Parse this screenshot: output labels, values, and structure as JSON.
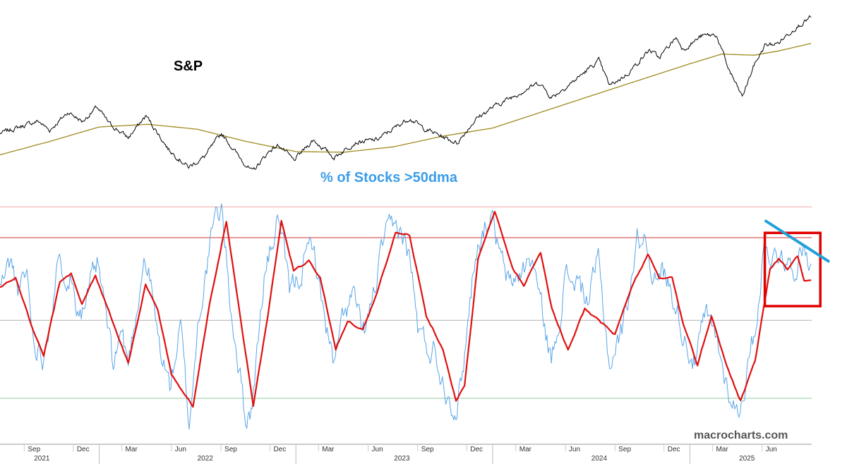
{
  "chart_data": [
    {
      "type": "line",
      "title": "S&P",
      "x_range": [
        "2021-07-01",
        "2025-08-15"
      ],
      "series": [
        {
          "role": "price",
          "color": "#000000",
          "points": [
            [
              "2021-07-01",
              4300
            ],
            [
              "2021-08-15",
              4450
            ],
            [
              "2021-09-10",
              4530
            ],
            [
              "2021-10-01",
              4360
            ],
            [
              "2021-11-05",
              4700
            ],
            [
              "2021-12-01",
              4520
            ],
            [
              "2021-12-28",
              4790
            ],
            [
              "2022-01-20",
              4480
            ],
            [
              "2022-02-24",
              4220
            ],
            [
              "2022-03-29",
              4630
            ],
            [
              "2022-05-10",
              4000
            ],
            [
              "2022-06-16",
              3670
            ],
            [
              "2022-07-15",
              3860
            ],
            [
              "2022-08-16",
              4300
            ],
            [
              "2022-09-15",
              3900
            ],
            [
              "2022-10-12",
              3580
            ],
            [
              "2022-11-15",
              4000
            ],
            [
              "2022-12-01",
              4080
            ],
            [
              "2022-12-28",
              3790
            ],
            [
              "2023-02-02",
              4180
            ],
            [
              "2023-03-13",
              3850
            ],
            [
              "2023-04-20",
              4130
            ],
            [
              "2023-05-31",
              4180
            ],
            [
              "2023-07-31",
              4590
            ],
            [
              "2023-08-25",
              4400
            ],
            [
              "2023-10-27",
              4120
            ],
            [
              "2023-11-30",
              4560
            ],
            [
              "2023-12-29",
              4770
            ],
            [
              "2024-02-15",
              5030
            ],
            [
              "2024-03-28",
              5250
            ],
            [
              "2024-04-19",
              4970
            ],
            [
              "2024-05-31",
              5280
            ],
            [
              "2024-07-16",
              5660
            ],
            [
              "2024-08-05",
              5190
            ],
            [
              "2024-09-06",
              5400
            ],
            [
              "2024-10-18",
              5860
            ],
            [
              "2024-11-05",
              5710
            ],
            [
              "2024-12-06",
              6090
            ],
            [
              "2024-12-20",
              5870
            ],
            [
              "2025-01-23",
              6120
            ],
            [
              "2025-02-19",
              6140
            ],
            [
              "2025-03-13",
              5520
            ],
            [
              "2025-04-08",
              4980
            ],
            [
              "2025-04-30",
              5570
            ],
            [
              "2025-05-20",
              5940
            ],
            [
              "2025-06-13",
              5980
            ],
            [
              "2025-07-15",
              6270
            ],
            [
              "2025-08-14",
              6470
            ]
          ]
        },
        {
          "role": "long moving average",
          "color": "#a08a1e",
          "points": [
            [
              "2021-07-01",
              3900
            ],
            [
              "2021-10-01",
              4150
            ],
            [
              "2022-01-01",
              4420
            ],
            [
              "2022-04-01",
              4470
            ],
            [
              "2022-07-01",
              4380
            ],
            [
              "2022-10-01",
              4150
            ],
            [
              "2023-01-01",
              3960
            ],
            [
              "2023-04-01",
              3950
            ],
            [
              "2023-07-01",
              4050
            ],
            [
              "2023-10-01",
              4250
            ],
            [
              "2024-01-01",
              4400
            ],
            [
              "2024-04-01",
              4700
            ],
            [
              "2024-07-01",
              5000
            ],
            [
              "2024-10-01",
              5300
            ],
            [
              "2025-01-01",
              5600
            ],
            [
              "2025-03-01",
              5780
            ],
            [
              "2025-05-01",
              5760
            ],
            [
              "2025-06-15",
              5840
            ],
            [
              "2025-08-14",
              5980
            ]
          ]
        }
      ]
    },
    {
      "type": "line",
      "title": "% of Stocks >50dma",
      "x_range": [
        "2021-07-01",
        "2025-08-15"
      ],
      "y_range": [
        0,
        100
      ],
      "series": [
        {
          "role": "daily",
          "color": "#5aa5e6",
          "points": [
            [
              "2021-07-01",
              62
            ],
            [
              "2021-07-20",
              73
            ],
            [
              "2021-08-05",
              60
            ],
            [
              "2021-08-20",
              68
            ],
            [
              "2021-09-01",
              40
            ],
            [
              "2021-09-20",
              33
            ],
            [
              "2021-10-15",
              70
            ],
            [
              "2021-11-08",
              68
            ],
            [
              "2021-11-20",
              57
            ],
            [
              "2021-12-01",
              53
            ],
            [
              "2021-12-10",
              58
            ],
            [
              "2021-12-28",
              71
            ],
            [
              "2022-01-10",
              56
            ],
            [
              "2022-01-27",
              28
            ],
            [
              "2022-02-10",
              44
            ],
            [
              "2022-02-24",
              30
            ],
            [
              "2022-03-25",
              74
            ],
            [
              "2022-04-05",
              66
            ],
            [
              "2022-04-20",
              40
            ],
            [
              "2022-05-12",
              20
            ],
            [
              "2022-06-01",
              45
            ],
            [
              "2022-06-17",
              4
            ],
            [
              "2022-07-05",
              50
            ],
            [
              "2022-08-01",
              88
            ],
            [
              "2022-08-16",
              96
            ],
            [
              "2022-09-01",
              56
            ],
            [
              "2022-09-30",
              6
            ],
            [
              "2022-10-12",
              12
            ],
            [
              "2022-11-03",
              66
            ],
            [
              "2022-11-30",
              92
            ],
            [
              "2022-12-20",
              59
            ],
            [
              "2023-01-05",
              66
            ],
            [
              "2023-02-02",
              82
            ],
            [
              "2023-02-15",
              60
            ],
            [
              "2023-03-13",
              28
            ],
            [
              "2023-03-30",
              50
            ],
            [
              "2023-04-20",
              59
            ],
            [
              "2023-05-04",
              40
            ],
            [
              "2023-05-18",
              51
            ],
            [
              "2023-06-15",
              84
            ],
            [
              "2023-07-14",
              87
            ],
            [
              "2023-08-01",
              74
            ],
            [
              "2023-08-15",
              45
            ],
            [
              "2023-09-01",
              36
            ],
            [
              "2023-09-15",
              36
            ],
            [
              "2023-10-04",
              20
            ],
            [
              "2023-10-27",
              10
            ],
            [
              "2023-11-10",
              34
            ],
            [
              "2023-11-30",
              78
            ],
            [
              "2023-12-28",
              93
            ],
            [
              "2024-01-17",
              73
            ],
            [
              "2024-02-01",
              62
            ],
            [
              "2024-02-20",
              68
            ],
            [
              "2024-03-15",
              74
            ],
            [
              "2024-04-19",
              30
            ],
            [
              "2024-05-15",
              66
            ],
            [
              "2024-06-05",
              65
            ],
            [
              "2024-06-25",
              56
            ],
            [
              "2024-07-15",
              73
            ],
            [
              "2024-08-05",
              29
            ],
            [
              "2024-08-30",
              45
            ],
            [
              "2024-09-25",
              82
            ],
            [
              "2024-10-10",
              84
            ],
            [
              "2024-11-01",
              62
            ],
            [
              "2024-11-11",
              70
            ],
            [
              "2024-11-29",
              60
            ],
            [
              "2024-12-18",
              44
            ],
            [
              "2025-01-10",
              30
            ],
            [
              "2025-01-30",
              50
            ],
            [
              "2025-02-19",
              40
            ],
            [
              "2025-03-10",
              21
            ],
            [
              "2025-03-31",
              8
            ],
            [
              "2025-04-10",
              18
            ],
            [
              "2025-05-02",
              44
            ],
            [
              "2025-05-20",
              82
            ],
            [
              "2025-06-05",
              74
            ],
            [
              "2025-06-20",
              78
            ],
            [
              "2025-07-10",
              68
            ],
            [
              "2025-07-28",
              80
            ],
            [
              "2025-08-14",
              72
            ]
          ]
        },
        {
          "role": "smoothed",
          "color": "#e01010",
          "points": [
            [
              "2021-07-01",
              62
            ],
            [
              "2021-07-30",
              66
            ],
            [
              "2021-08-28",
              46
            ],
            [
              "2021-09-20",
              33
            ],
            [
              "2021-10-20",
              64
            ],
            [
              "2021-11-10",
              68
            ],
            [
              "2021-11-30",
              55
            ],
            [
              "2021-12-25",
              67
            ],
            [
              "2022-01-27",
              47
            ],
            [
              "2022-02-24",
              30
            ],
            [
              "2022-03-28",
              63
            ],
            [
              "2022-04-20",
              52
            ],
            [
              "2022-05-15",
              25
            ],
            [
              "2022-06-24",
              12
            ],
            [
              "2022-07-25",
              55
            ],
            [
              "2022-08-25",
              90
            ],
            [
              "2022-10-14",
              12
            ],
            [
              "2022-11-10",
              50
            ],
            [
              "2022-12-05",
              90
            ],
            [
              "2022-12-28",
              69
            ],
            [
              "2023-01-25",
              73
            ],
            [
              "2023-02-15",
              66
            ],
            [
              "2023-03-16",
              36
            ],
            [
              "2023-04-07",
              48
            ],
            [
              "2023-05-05",
              44
            ],
            [
              "2023-06-01",
              60
            ],
            [
              "2023-07-05",
              85
            ],
            [
              "2023-07-31",
              84
            ],
            [
              "2023-08-31",
              50
            ],
            [
              "2023-10-01",
              36
            ],
            [
              "2023-10-25",
              14
            ],
            [
              "2023-11-10",
              20
            ],
            [
              "2023-12-05",
              74
            ],
            [
              "2024-01-05",
              94
            ],
            [
              "2024-02-07",
              70
            ],
            [
              "2024-02-28",
              63
            ],
            [
              "2024-03-30",
              77
            ],
            [
              "2024-04-20",
              53
            ],
            [
              "2024-05-20",
              35
            ],
            [
              "2024-06-20",
              53
            ],
            [
              "2024-07-20",
              47
            ],
            [
              "2024-08-15",
              42
            ],
            [
              "2024-09-15",
              62
            ],
            [
              "2024-10-15",
              76
            ],
            [
              "2024-11-05",
              66
            ],
            [
              "2024-11-29",
              66
            ],
            [
              "2024-12-20",
              46
            ],
            [
              "2025-01-15",
              29
            ],
            [
              "2025-02-10",
              50
            ],
            [
              "2025-03-10",
              29
            ],
            [
              "2025-04-05",
              14
            ],
            [
              "2025-05-02",
              31
            ],
            [
              "2025-05-30",
              70
            ],
            [
              "2025-06-15",
              74
            ],
            [
              "2025-07-01",
              70
            ],
            [
              "2025-07-20",
              75
            ],
            [
              "2025-08-01",
              65
            ],
            [
              "2025-08-14",
              65
            ]
          ]
        }
      ],
      "reference_lines": [
        {
          "value": 96,
          "color": "#f0a8a8"
        },
        {
          "value": 83,
          "color": "#cc3333"
        },
        {
          "value": 48,
          "color": "#b0b0b0"
        },
        {
          "value": 15,
          "color": "#8fd09a"
        }
      ],
      "annotations": [
        {
          "shape": "rectangle",
          "color": "#e00000",
          "x_range": [
            "2025-05-20",
            "2025-08-31"
          ],
          "y_range": [
            54,
            85
          ]
        },
        {
          "shape": "trendline",
          "color": "#22a0d8",
          "from": [
            "2025-05-22",
            90
          ],
          "to": [
            "2025-09-15",
            73
          ]
        }
      ],
      "x_ticks": {
        "months": [
          {
            "date": "2021-09-01",
            "label": "Sep"
          },
          {
            "date": "2021-12-01",
            "label": "Dec"
          },
          {
            "date": "2022-03-01",
            "label": "Mar"
          },
          {
            "date": "2022-06-01",
            "label": "Jun"
          },
          {
            "date": "2022-09-01",
            "label": "Sep"
          },
          {
            "date": "2022-12-01",
            "label": "Dec"
          },
          {
            "date": "2023-03-01",
            "label": "Mar"
          },
          {
            "date": "2023-06-01",
            "label": "Jun"
          },
          {
            "date": "2023-09-01",
            "label": "Sep"
          },
          {
            "date": "2023-12-01",
            "label": "Dec"
          },
          {
            "date": "2024-03-01",
            "label": "Mar"
          },
          {
            "date": "2024-06-01",
            "label": "Jun"
          },
          {
            "date": "2024-09-01",
            "label": "Sep"
          },
          {
            "date": "2024-12-01",
            "label": "Dec"
          },
          {
            "date": "2025-03-01",
            "label": "Mar"
          },
          {
            "date": "2025-06-01",
            "label": "Jun"
          }
        ],
        "years": [
          {
            "date": "2021-09-01",
            "label": "2021"
          },
          {
            "date": "2022-07-01",
            "label": "2022"
          },
          {
            "date": "2023-07-01",
            "label": "2023"
          },
          {
            "date": "2024-07-01",
            "label": "2024"
          },
          {
            "date": "2025-04-01",
            "label": "2025"
          }
        ]
      }
    }
  ],
  "labels": {
    "sp_title": "S&P",
    "breadth_title": "% of Stocks >50dma",
    "watermark": "macrocharts.com"
  },
  "colors": {
    "breadth_title": "#3b9de8",
    "watermark": "#555555"
  }
}
